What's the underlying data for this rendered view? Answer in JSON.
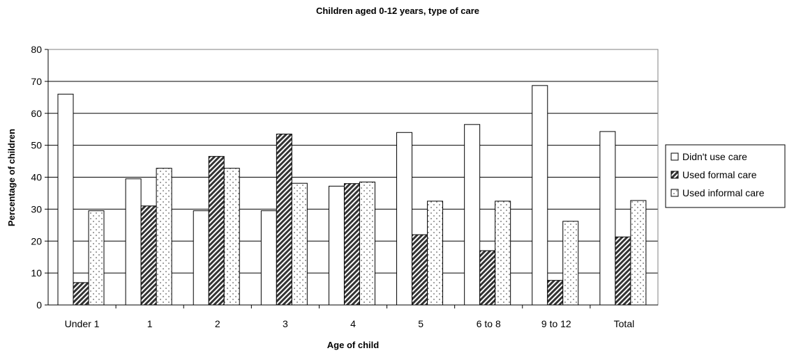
{
  "chart_data": {
    "type": "bar",
    "title": "Children aged 0-12 years, type of care",
    "xlabel": "Age of child",
    "ylabel": "Percentage of children",
    "ylim": [
      0,
      80
    ],
    "yticks": [
      0,
      10,
      20,
      30,
      40,
      50,
      60,
      70,
      80
    ],
    "grid": true,
    "legend_position": "right",
    "categories": [
      "Under 1",
      "1",
      "2",
      "3",
      "4",
      "5",
      "6 to 8",
      "9 to 12",
      "Total"
    ],
    "series": [
      {
        "name": "Didn't use care",
        "pattern": "plain",
        "fill": "#ffffff",
        "values": [
          66,
          39.5,
          29.5,
          29.5,
          37.2,
          54,
          56.5,
          68.7,
          54.3
        ]
      },
      {
        "name": "Used formal care",
        "pattern": "hatched",
        "fill": "#333333",
        "values": [
          7,
          31,
          46.5,
          53.5,
          38,
          22,
          17,
          7.7,
          21.3
        ]
      },
      {
        "name": "Used informal care",
        "pattern": "dotted",
        "fill": "#ffffff",
        "values": [
          29.5,
          42.8,
          42.8,
          38.1,
          38.5,
          32.5,
          32.5,
          26.2,
          32.7
        ]
      }
    ]
  }
}
